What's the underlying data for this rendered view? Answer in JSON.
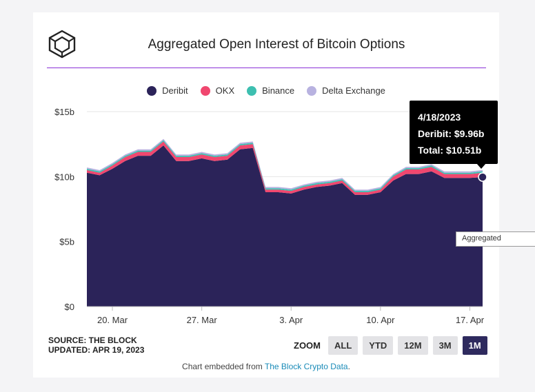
{
  "header": {
    "title": "Aggregated Open Interest of Bitcoin Options"
  },
  "legend": [
    {
      "name": "Deribit",
      "color": "#2b2359"
    },
    {
      "name": "OKX",
      "color": "#f0476f"
    },
    {
      "name": "Binance",
      "color": "#3dbfb0"
    },
    {
      "name": "Delta Exchange",
      "color": "#b8b2e0"
    }
  ],
  "chart_data": {
    "type": "area",
    "stacked": true,
    "title": "Aggregated Open Interest of Bitcoin Options",
    "x": [
      "3/18",
      "3/19",
      "3/20",
      "3/21",
      "3/22",
      "3/23",
      "3/24",
      "3/25",
      "3/26",
      "3/27",
      "3/28",
      "3/29",
      "3/30",
      "3/31",
      "4/1",
      "4/2",
      "4/3",
      "4/4",
      "4/5",
      "4/6",
      "4/7",
      "4/8",
      "4/9",
      "4/10",
      "4/11",
      "4/12",
      "4/13",
      "4/14",
      "4/15",
      "4/16",
      "4/17",
      "4/18"
    ],
    "series": [
      {
        "name": "Deribit",
        "color": "#2b2359",
        "values": [
          10.3,
          10.1,
          10.6,
          11.2,
          11.6,
          11.6,
          12.4,
          11.2,
          11.2,
          11.4,
          11.2,
          11.3,
          12.1,
          12.2,
          8.8,
          8.8,
          8.7,
          9.0,
          9.2,
          9.3,
          9.5,
          8.6,
          8.6,
          8.8,
          9.7,
          10.2,
          10.2,
          10.4,
          9.9,
          9.9,
          9.9,
          9.96
        ]
      },
      {
        "name": "OKX",
        "color": "#f0476f",
        "values": [
          0.2,
          0.2,
          0.25,
          0.3,
          0.3,
          0.3,
          0.3,
          0.3,
          0.3,
          0.3,
          0.3,
          0.3,
          0.3,
          0.3,
          0.2,
          0.2,
          0.2,
          0.2,
          0.2,
          0.2,
          0.2,
          0.2,
          0.2,
          0.2,
          0.3,
          0.35,
          0.35,
          0.35,
          0.3,
          0.3,
          0.3,
          0.33
        ]
      },
      {
        "name": "Binance",
        "color": "#3dbfb0",
        "values": [
          0.1,
          0.1,
          0.1,
          0.1,
          0.1,
          0.1,
          0.1,
          0.1,
          0.1,
          0.1,
          0.1,
          0.1,
          0.1,
          0.1,
          0.1,
          0.1,
          0.1,
          0.1,
          0.1,
          0.1,
          0.1,
          0.1,
          0.1,
          0.1,
          0.1,
          0.1,
          0.1,
          0.1,
          0.1,
          0.1,
          0.1,
          0.12
        ]
      },
      {
        "name": "Delta Exchange",
        "color": "#b8b2e0",
        "values": [
          0.1,
          0.1,
          0.1,
          0.1,
          0.1,
          0.1,
          0.1,
          0.1,
          0.1,
          0.1,
          0.1,
          0.1,
          0.1,
          0.1,
          0.1,
          0.1,
          0.1,
          0.1,
          0.1,
          0.1,
          0.1,
          0.1,
          0.1,
          0.1,
          0.1,
          0.1,
          0.1,
          0.1,
          0.1,
          0.1,
          0.1,
          0.1
        ]
      }
    ],
    "yticks": [
      0,
      5,
      10,
      15
    ],
    "ytick_labels": [
      "$0",
      "$5b",
      "$10b",
      "$15b"
    ],
    "ylim": [
      0,
      15
    ],
    "xticks": [
      {
        "index": 2,
        "label": "20. Mar"
      },
      {
        "index": 9,
        "label": "27. Mar"
      },
      {
        "index": 16,
        "label": "3. Apr"
      },
      {
        "index": 23,
        "label": "10. Apr"
      },
      {
        "index": 30,
        "label": "17. Apr"
      }
    ],
    "xlabel": "",
    "ylabel": ""
  },
  "tooltip": {
    "date": "4/18/2023",
    "deribit": "Deribit: $9.96b",
    "total": "Total: $10.51b"
  },
  "footer": {
    "source": "SOURCE: THE BLOCK",
    "updated": "UPDATED: APR 19, 2023",
    "zoom_label": "ZOOM",
    "zoom_buttons": [
      "ALL",
      "YTD",
      "12M",
      "3M",
      "1M"
    ],
    "zoom_active": "1M",
    "embed_prefix": "Chart embedded from ",
    "embed_link": "The Block Crypto Data",
    "embed_suffix": "."
  },
  "side_tab": "Aggregated"
}
